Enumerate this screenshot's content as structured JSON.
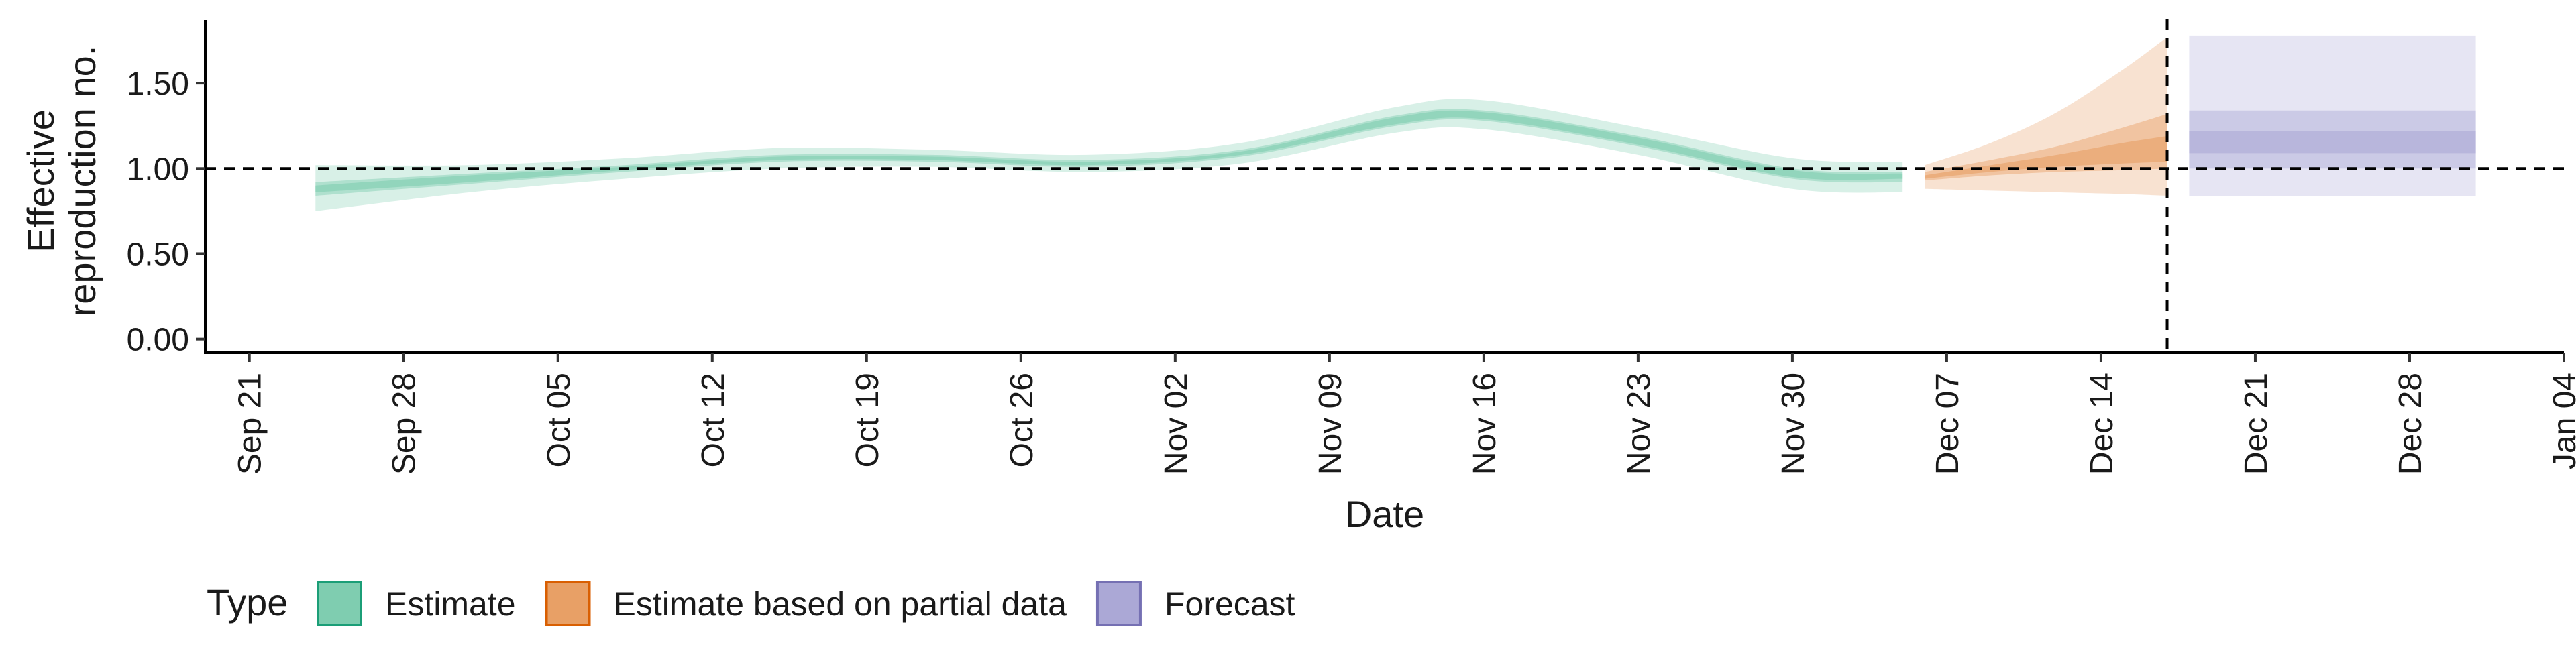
{
  "chart_data": {
    "type": "area",
    "title": "",
    "xlabel": "Date",
    "ylabel_lines": [
      "Effective",
      "reproduction no."
    ],
    "y_ticks": [
      "0.00",
      "0.50",
      "1.00",
      "1.50"
    ],
    "y_tick_values": [
      0,
      0.5,
      1.0,
      1.5
    ],
    "ylim": [
      -0.08,
      1.87
    ],
    "x_tick_labels": [
      "Sep 21",
      "Sep 28",
      "Oct 05",
      "Oct 12",
      "Oct 19",
      "Oct 26",
      "Nov 02",
      "Nov 09",
      "Nov 16",
      "Nov 23",
      "Nov 30",
      "Dec 07",
      "Dec 14",
      "Dec 21",
      "Dec 28",
      "Jan 04"
    ],
    "x_tick_dates": [
      "2020-09-21",
      "2020-09-28",
      "2020-10-05",
      "2020-10-12",
      "2020-10-19",
      "2020-10-26",
      "2020-11-02",
      "2020-11-09",
      "2020-11-16",
      "2020-11-23",
      "2020-11-30",
      "2020-12-07",
      "2020-12-14",
      "2020-12-21",
      "2020-12-28",
      "2021-01-04"
    ],
    "xlim": [
      "2020-09-19",
      "2021-01-04"
    ],
    "reference_hline": 1.0,
    "reference_vline": "2020-12-17",
    "legend_title": "Type",
    "legend_position": "bottom",
    "grid": false,
    "series": [
      {
        "name": "Estimate",
        "color": "#1b9e77",
        "fill": "#7fcdb0",
        "points": [
          {
            "date": "2020-09-24",
            "median": 0.88,
            "lo90": 0.75,
            "hi90": 1.02,
            "lo50": 0.84,
            "hi50": 0.92,
            "lo20": 0.86,
            "hi20": 0.9
          },
          {
            "date": "2020-10-01",
            "median": 0.94,
            "lo90": 0.86,
            "hi90": 1.02,
            "lo50": 0.91,
            "hi50": 0.97,
            "lo20": 0.92,
            "hi20": 0.96
          },
          {
            "date": "2020-10-08",
            "median": 1.0,
            "lo90": 0.94,
            "hi90": 1.06,
            "lo50": 0.98,
            "hi50": 1.02,
            "lo20": 0.99,
            "hi20": 1.01
          },
          {
            "date": "2020-10-15",
            "median": 1.06,
            "lo90": 1.0,
            "hi90": 1.12,
            "lo50": 1.04,
            "hi50": 1.08,
            "lo20": 1.05,
            "hi20": 1.07
          },
          {
            "date": "2020-10-22",
            "median": 1.06,
            "lo90": 1.01,
            "hi90": 1.11,
            "lo50": 1.04,
            "hi50": 1.08,
            "lo20": 1.05,
            "hi20": 1.07
          },
          {
            "date": "2020-10-29",
            "median": 1.03,
            "lo90": 0.98,
            "hi90": 1.08,
            "lo50": 1.01,
            "hi50": 1.05,
            "lo20": 1.02,
            "hi20": 1.04
          },
          {
            "date": "2020-11-05",
            "median": 1.09,
            "lo90": 1.03,
            "hi90": 1.15,
            "lo50": 1.07,
            "hi50": 1.11,
            "lo20": 1.08,
            "hi20": 1.1
          },
          {
            "date": "2020-11-12",
            "median": 1.28,
            "lo90": 1.21,
            "hi90": 1.36,
            "lo50": 1.25,
            "hi50": 1.31,
            "lo20": 1.26,
            "hi20": 1.3
          },
          {
            "date": "2020-11-16",
            "median": 1.31,
            "lo90": 1.23,
            "hi90": 1.4,
            "lo50": 1.28,
            "hi50": 1.34,
            "lo20": 1.29,
            "hi20": 1.33
          },
          {
            "date": "2020-11-23",
            "median": 1.16,
            "lo90": 1.08,
            "hi90": 1.24,
            "lo50": 1.13,
            "hi50": 1.19,
            "lo20": 1.14,
            "hi20": 1.18
          },
          {
            "date": "2020-11-30",
            "median": 0.97,
            "lo90": 0.88,
            "hi90": 1.06,
            "lo50": 0.94,
            "hi50": 1.0,
            "lo20": 0.95,
            "hi20": 0.99
          },
          {
            "date": "2020-12-05",
            "median": 0.95,
            "lo90": 0.86,
            "hi90": 1.04,
            "lo50": 0.92,
            "hi50": 0.98,
            "lo20": 0.94,
            "hi20": 0.97
          }
        ]
      },
      {
        "name": "Estimate based on partial data",
        "color": "#d95f02",
        "fill": "#e8a066",
        "points": [
          {
            "date": "2020-12-06",
            "median": 0.95,
            "lo90": 0.88,
            "hi90": 1.02,
            "lo50": 0.93,
            "hi50": 0.98,
            "lo20": 0.94,
            "hi20": 0.96
          },
          {
            "date": "2020-12-09",
            "median": 1.0,
            "lo90": 0.87,
            "hi90": 1.15,
            "lo50": 0.96,
            "hi50": 1.05,
            "lo20": 0.98,
            "hi20": 1.02
          },
          {
            "date": "2020-12-12",
            "median": 1.04,
            "lo90": 0.86,
            "hi90": 1.33,
            "lo50": 0.98,
            "hi50": 1.13,
            "lo20": 1.01,
            "hi20": 1.08
          },
          {
            "date": "2020-12-15",
            "median": 1.08,
            "lo90": 0.85,
            "hi90": 1.58,
            "lo50": 0.99,
            "hi50": 1.24,
            "lo20": 1.03,
            "hi20": 1.15
          },
          {
            "date": "2020-12-17",
            "median": 1.1,
            "lo90": 0.84,
            "hi90": 1.77,
            "lo50": 1.0,
            "hi50": 1.32,
            "lo20": 1.04,
            "hi20": 1.19
          }
        ]
      },
      {
        "name": "Forecast",
        "color": "#7570b3",
        "fill": "#aba8d6",
        "points": [
          {
            "date": "2020-12-18",
            "median": 1.15,
            "lo90": 0.84,
            "hi90": 1.78,
            "lo50": 1.0,
            "hi50": 1.34,
            "lo20": 1.09,
            "hi20": 1.22
          },
          {
            "date": "2020-12-31",
            "median": 1.15,
            "lo90": 0.84,
            "hi90": 1.78,
            "lo50": 1.0,
            "hi50": 1.34,
            "lo20": 1.09,
            "hi20": 1.22
          }
        ]
      }
    ]
  }
}
